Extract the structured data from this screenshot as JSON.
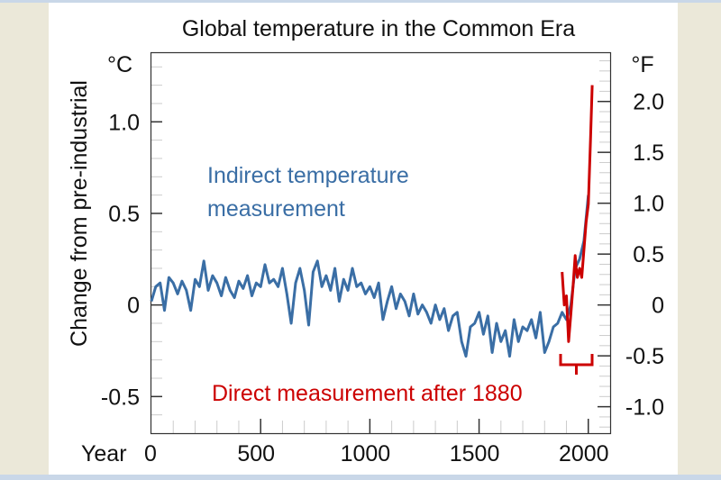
{
  "chart_data": {
    "type": "line",
    "title": "Global temperature in the Common Era",
    "ylabel": "Change from pre-industrial",
    "y_unit_left": "°C",
    "y_unit_right": "°F",
    "xlabel_prefix": "Year",
    "xlim": [
      0,
      2100
    ],
    "ylim": [
      -0.7,
      1.38
    ],
    "x_ticks": [
      0,
      500,
      1000,
      1500,
      2000
    ],
    "x_tick_labels": [
      "0",
      "500",
      "1000",
      "1500",
      "2000"
    ],
    "y_ticks_left": [
      1.0,
      0.5,
      0,
      -0.5
    ],
    "y_tick_labels_left": [
      "1.0",
      "0.5",
      "0",
      "-0.5"
    ],
    "y_ticks_right_f": [
      2.0,
      1.5,
      1.0,
      0.5,
      0,
      -0.5,
      -1.0
    ],
    "y_tick_labels_right": [
      "2.0",
      "1.5",
      "1.0",
      "0.5",
      "0",
      "-0.5",
      "-1.0"
    ],
    "grid": false,
    "series": [
      {
        "name": "Indirect temperature measurement",
        "color": "#3a6ea5",
        "x": [
          0,
          20,
          40,
          60,
          80,
          100,
          120,
          140,
          160,
          180,
          200,
          220,
          240,
          260,
          280,
          300,
          320,
          340,
          360,
          380,
          400,
          420,
          440,
          460,
          480,
          500,
          520,
          540,
          560,
          580,
          600,
          620,
          640,
          660,
          680,
          700,
          720,
          740,
          760,
          780,
          800,
          820,
          840,
          860,
          880,
          900,
          920,
          940,
          960,
          980,
          1000,
          1020,
          1040,
          1060,
          1080,
          1100,
          1120,
          1140,
          1160,
          1180,
          1200,
          1220,
          1240,
          1260,
          1280,
          1300,
          1320,
          1340,
          1360,
          1380,
          1400,
          1420,
          1440,
          1460,
          1480,
          1500,
          1520,
          1540,
          1560,
          1580,
          1600,
          1620,
          1640,
          1660,
          1680,
          1700,
          1720,
          1740,
          1760,
          1780,
          1800,
          1820,
          1840,
          1860,
          1880,
          1900,
          1920,
          1940,
          1960,
          1980,
          2000
        ],
        "y": [
          0.02,
          0.1,
          0.12,
          -0.03,
          0.15,
          0.12,
          0.06,
          0.13,
          0.08,
          -0.03,
          0.14,
          0.1,
          0.24,
          0.08,
          0.16,
          0.12,
          0.05,
          0.15,
          0.08,
          0.04,
          0.13,
          0.09,
          0.16,
          0.05,
          0.12,
          0.1,
          0.22,
          0.12,
          0.14,
          0.1,
          0.2,
          0.06,
          -0.1,
          0.12,
          0.2,
          0.08,
          -0.11,
          0.18,
          0.24,
          0.1,
          0.16,
          0.08,
          0.2,
          0.02,
          0.14,
          0.08,
          0.2,
          0.1,
          0.12,
          0.06,
          0.1,
          0.04,
          0.12,
          -0.08,
          0.02,
          0.1,
          -0.02,
          0.06,
          0.02,
          -0.06,
          0.06,
          -0.05,
          0.0,
          -0.04,
          -0.1,
          0.0,
          -0.08,
          -0.02,
          -0.14,
          -0.06,
          -0.04,
          -0.2,
          -0.28,
          -0.12,
          -0.1,
          -0.04,
          -0.16,
          -0.06,
          -0.26,
          -0.1,
          -0.2,
          -0.14,
          -0.28,
          -0.08,
          -0.2,
          -0.12,
          -0.14,
          -0.08,
          -0.18,
          -0.04,
          -0.26,
          -0.2,
          -0.12,
          -0.1,
          -0.04,
          -0.08,
          0.0,
          0.2,
          0.25,
          0.35,
          0.6
        ]
      },
      {
        "name": "Direct measurement after 1880",
        "color": "#cc0000",
        "x": [
          1880,
          1890,
          1900,
          1910,
          1920,
          1930,
          1940,
          1945,
          1950,
          1960,
          1970,
          1980,
          1990,
          2000,
          2010,
          2018
        ],
        "y": [
          0.18,
          0.0,
          0.05,
          -0.2,
          -0.05,
          0.1,
          0.27,
          0.2,
          0.15,
          0.2,
          0.15,
          0.3,
          0.45,
          0.55,
          0.9,
          1.2
        ]
      }
    ],
    "annotations": {
      "indirect_line1": "Indirect temperature",
      "indirect_line2": "measurement",
      "direct": "Direct measurement after 1880"
    }
  }
}
